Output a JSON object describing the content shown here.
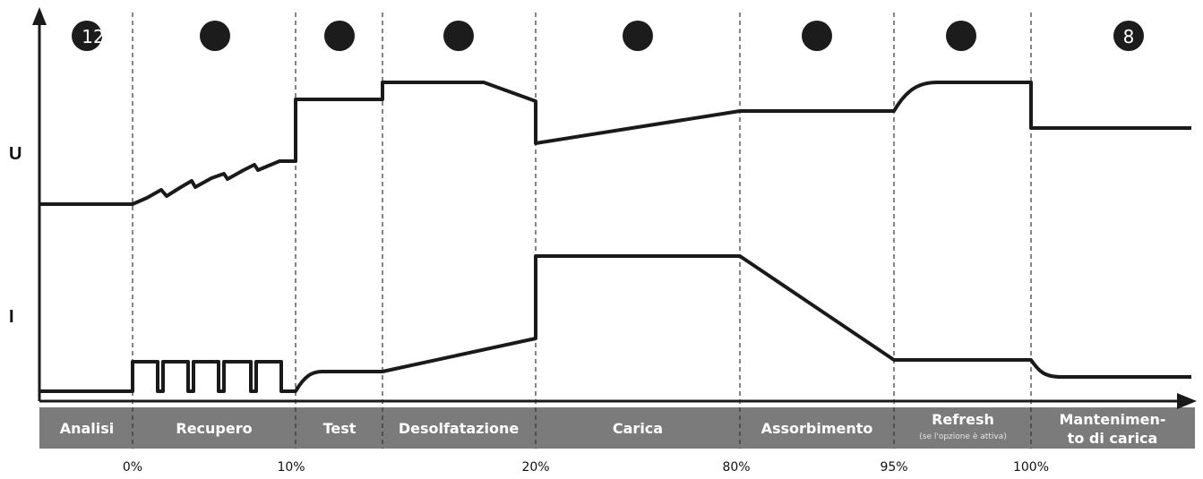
{
  "axes": {
    "voltage_label": "U",
    "current_label": "I"
  },
  "phases": [
    {
      "id": "analisi",
      "label": "Analisi",
      "indicator": "12"
    },
    {
      "id": "recupero",
      "label": "Recupero",
      "indicator": ""
    },
    {
      "id": "test",
      "label": "Test",
      "indicator": ""
    },
    {
      "id": "desolfatazione",
      "label": "Desolfatazione",
      "indicator": ""
    },
    {
      "id": "carica",
      "label": "Carica",
      "indicator": ""
    },
    {
      "id": "assorbimento",
      "label": "Assorbimento",
      "indicator": ""
    },
    {
      "id": "refresh",
      "label": "Refresh",
      "sublabel": "(se l'opzione è attiva)",
      "indicator": ""
    },
    {
      "id": "mantenimento",
      "label_line1": "Mantenimen-",
      "label_line2": "to di carica",
      "indicator": "8"
    }
  ],
  "progress_marks": [
    "0%",
    "10%",
    "20%",
    "80%",
    "95%",
    "100%"
  ],
  "colors": {
    "line": "#1a1a1a",
    "phase_bar": "#7b7b7b",
    "phase_text": "#ffffff",
    "indicator": "#1c1c1c"
  }
}
